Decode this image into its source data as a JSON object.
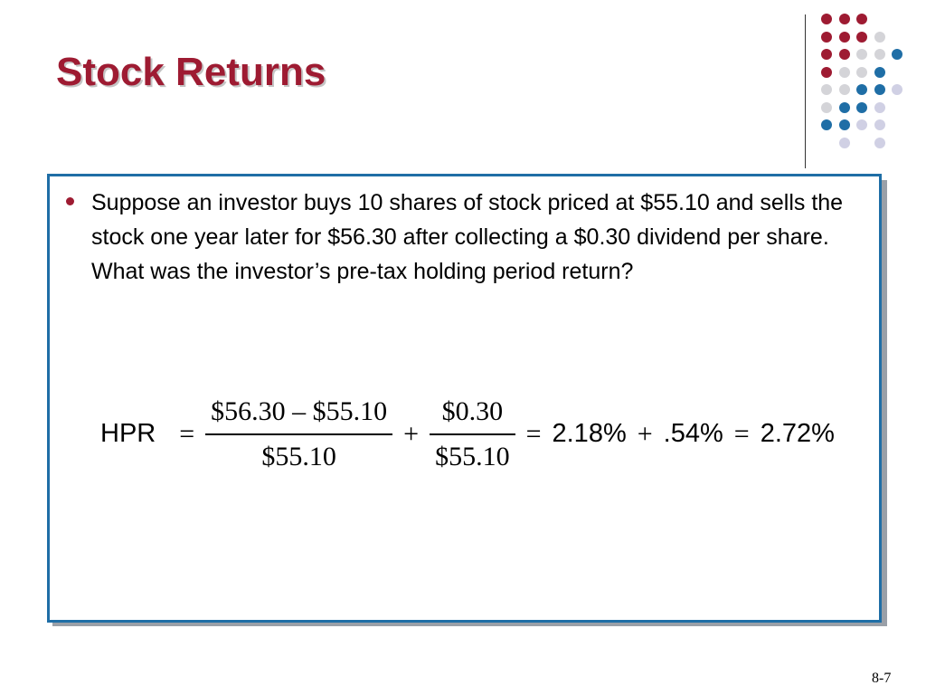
{
  "slide": {
    "title": "Stock Returns",
    "bullet": "Suppose an investor buys 10 shares of stock priced at $55.10 and sells the stock one year later for $56.30 after collecting a $0.30 dividend per share.  What was the investor’s pre-tax holding period return?",
    "page_number": "8-7"
  },
  "formula": {
    "lhs": "HPR",
    "eq": "=",
    "frac1_num": "$56.30 – $55.10",
    "frac1_den": "$55.10",
    "plus": "+",
    "frac2_num": "$0.30",
    "frac2_den": "$55.10",
    "eq2": "=",
    "term1": "2.18%",
    "plus2": "+",
    "term2": ".54%",
    "eq3": "=",
    "result": "2.72%"
  },
  "colors": {
    "title": "#9e1b32",
    "accent_red": "#9e1b32",
    "accent_blue": "#1f6ea6",
    "dot_gray": "#d4d4d8",
    "dot_lavender": "#d0d0e4"
  },
  "decoration": {
    "dot_grid": [
      [
        "red",
        "red",
        "red",
        "none",
        "none"
      ],
      [
        "red",
        "red",
        "red",
        "gray",
        "none"
      ],
      [
        "red",
        "red",
        "gray",
        "gray",
        "blue"
      ],
      [
        "red",
        "gray",
        "gray",
        "blue",
        "none"
      ],
      [
        "gray",
        "gray",
        "blue",
        "blue",
        "lavender"
      ],
      [
        "gray",
        "blue",
        "blue",
        "lavender",
        "none"
      ],
      [
        "blue",
        "blue",
        "lavender",
        "lavender",
        "none"
      ],
      [
        "none",
        "lavender",
        "none",
        "lavender",
        "none"
      ]
    ]
  }
}
